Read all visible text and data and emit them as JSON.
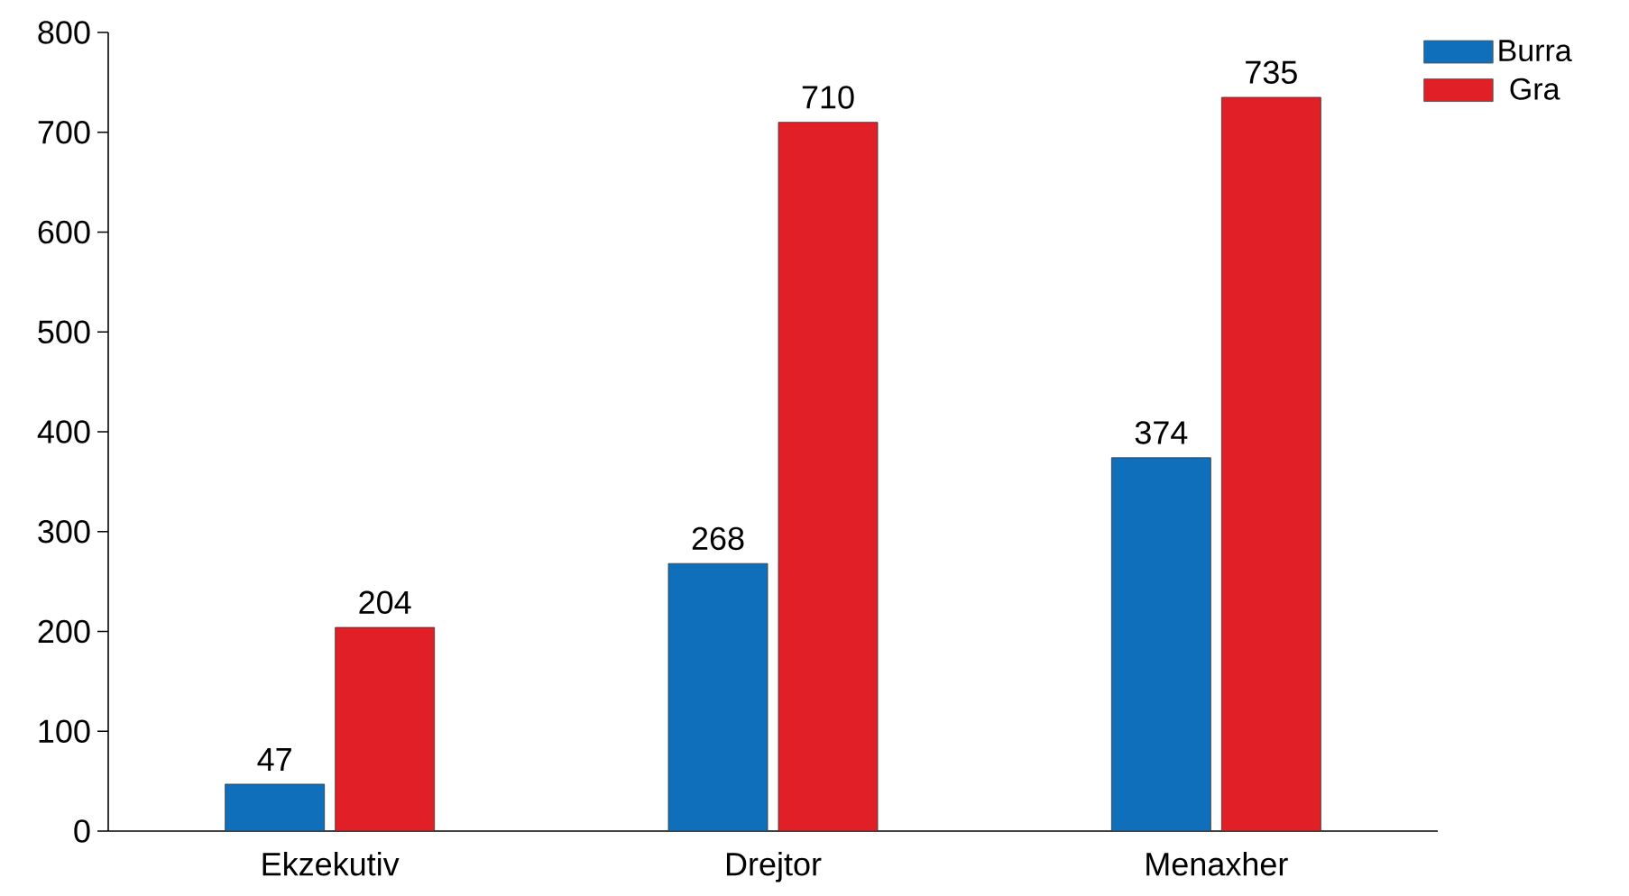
{
  "chart_data": {
    "type": "bar",
    "categories": [
      "Ekzekutiv",
      "Drejtor",
      "Menaxher"
    ],
    "series": [
      {
        "name": "Burra",
        "color": "#0f6fba",
        "values": [
          47,
          268,
          374
        ]
      },
      {
        "name": "Gra",
        "color": "#e01f26",
        "values": [
          204,
          710,
          735
        ]
      }
    ],
    "ylim": [
      0,
      800
    ],
    "yticks": [
      0,
      100,
      200,
      300,
      400,
      500,
      600,
      700,
      800
    ],
    "data_labels": true,
    "legend": "top right"
  }
}
